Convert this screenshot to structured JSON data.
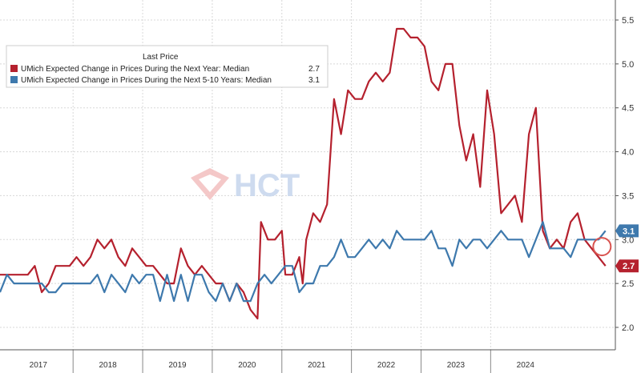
{
  "legend": {
    "title": "Last Price",
    "items": [
      {
        "label": "UMich Expected Change in Prices During the Next Year: Median",
        "value": "2.7",
        "color": "#b5212e"
      },
      {
        "label": "UMich Expected Change in Prices During the Next 5-10 Years: Median",
        "value": "3.1",
        "color": "#3e79ad"
      }
    ]
  },
  "watermark": {
    "text": "HCT"
  },
  "chart_data": {
    "type": "line",
    "x_unit": "year (decimal)",
    "xlim": [
      2016.75,
      2025.25
    ],
    "ylim": [
      1.85,
      5.6
    ],
    "yticks": [
      2.0,
      2.5,
      3.0,
      3.5,
      4.0,
      4.5,
      5.0,
      5.5
    ],
    "ytick_labels": [
      "2.0",
      "2.5",
      "3.0",
      "3.5",
      "4.0",
      "4.5",
      "5.0",
      "5.5"
    ],
    "xticks": [
      {
        "label": "2017",
        "center": 2017.3
      },
      {
        "label": "2018",
        "center": 2018.3
      },
      {
        "label": "2019",
        "center": 2019.3
      },
      {
        "label": "2020",
        "center": 2020.3
      },
      {
        "label": "2021",
        "center": 2021.3
      },
      {
        "label": "2022",
        "center": 2022.3
      },
      {
        "label": "2023",
        "center": 2023.3
      },
      {
        "label": "2024",
        "center": 2024.3
      }
    ],
    "year_dividers": [
      2017.8,
      2018.8,
      2019.8,
      2020.8,
      2021.8,
      2022.8,
      2023.8
    ],
    "grid": true,
    "axis_position": "right",
    "series": [
      {
        "name": "UMich Expected Change in Prices During the Next Year: Median",
        "color": "#b5212e",
        "last_value": "2.7",
        "points": [
          [
            2016.75,
            2.6
          ],
          [
            2016.85,
            2.6
          ],
          [
            2016.95,
            2.6
          ],
          [
            2017.05,
            2.6
          ],
          [
            2017.15,
            2.6
          ],
          [
            2017.25,
            2.7
          ],
          [
            2017.35,
            2.4
          ],
          [
            2017.45,
            2.5
          ],
          [
            2017.55,
            2.7
          ],
          [
            2017.65,
            2.7
          ],
          [
            2017.75,
            2.7
          ],
          [
            2017.85,
            2.8
          ],
          [
            2017.95,
            2.7
          ],
          [
            2018.05,
            2.8
          ],
          [
            2018.15,
            3.0
          ],
          [
            2018.25,
            2.9
          ],
          [
            2018.35,
            3.0
          ],
          [
            2018.45,
            2.8
          ],
          [
            2018.55,
            2.7
          ],
          [
            2018.65,
            2.9
          ],
          [
            2018.75,
            2.8
          ],
          [
            2018.85,
            2.7
          ],
          [
            2018.95,
            2.7
          ],
          [
            2019.05,
            2.6
          ],
          [
            2019.15,
            2.5
          ],
          [
            2019.25,
            2.5
          ],
          [
            2019.35,
            2.9
          ],
          [
            2019.45,
            2.7
          ],
          [
            2019.55,
            2.6
          ],
          [
            2019.65,
            2.7
          ],
          [
            2019.75,
            2.6
          ],
          [
            2019.85,
            2.5
          ],
          [
            2019.95,
            2.5
          ],
          [
            2020.05,
            2.3
          ],
          [
            2020.15,
            2.5
          ],
          [
            2020.25,
            2.4
          ],
          [
            2020.35,
            2.2
          ],
          [
            2020.45,
            2.1
          ],
          [
            2020.5,
            3.2
          ],
          [
            2020.6,
            3.0
          ],
          [
            2020.7,
            3.0
          ],
          [
            2020.8,
            3.1
          ],
          [
            2020.85,
            2.6
          ],
          [
            2020.95,
            2.6
          ],
          [
            2021.05,
            2.8
          ],
          [
            2021.1,
            2.5
          ],
          [
            2021.15,
            3.0
          ],
          [
            2021.25,
            3.3
          ],
          [
            2021.35,
            3.2
          ],
          [
            2021.45,
            3.4
          ],
          [
            2021.55,
            4.6
          ],
          [
            2021.65,
            4.2
          ],
          [
            2021.75,
            4.7
          ],
          [
            2021.85,
            4.6
          ],
          [
            2021.95,
            4.6
          ],
          [
            2022.05,
            4.8
          ],
          [
            2022.15,
            4.9
          ],
          [
            2022.25,
            4.8
          ],
          [
            2022.35,
            4.9
          ],
          [
            2022.45,
            5.4
          ],
          [
            2022.55,
            5.4
          ],
          [
            2022.65,
            5.3
          ],
          [
            2022.75,
            5.3
          ],
          [
            2022.85,
            5.2
          ],
          [
            2022.95,
            4.8
          ],
          [
            2023.05,
            4.7
          ],
          [
            2023.15,
            5.0
          ],
          [
            2023.25,
            5.0
          ],
          [
            2023.35,
            4.3
          ],
          [
            2023.45,
            3.9
          ],
          [
            2023.55,
            4.2
          ],
          [
            2023.65,
            3.6
          ],
          [
            2023.75,
            4.7
          ],
          [
            2023.85,
            4.2
          ],
          [
            2023.95,
            3.3
          ],
          [
            2024.05,
            3.4
          ],
          [
            2024.15,
            3.5
          ],
          [
            2024.25,
            3.2
          ],
          [
            2024.35,
            4.2
          ],
          [
            2024.45,
            4.5
          ],
          [
            2024.55,
            3.1
          ],
          [
            2024.65,
            2.9
          ],
          [
            2024.75,
            3.0
          ],
          [
            2024.85,
            2.9
          ],
          [
            2024.95,
            3.2
          ],
          [
            2025.05,
            3.3
          ],
          [
            2025.15,
            3.0
          ],
          [
            2025.25,
            2.9
          ],
          [
            2025.35,
            2.8
          ],
          [
            2025.45,
            2.7
          ]
        ]
      },
      {
        "name": "UMich Expected Change in Prices During the Next 5-10 Years: Median",
        "color": "#3e79ad",
        "last_value": "3.1",
        "points": [
          [
            2016.75,
            2.4
          ],
          [
            2016.85,
            2.6
          ],
          [
            2016.95,
            2.5
          ],
          [
            2017.05,
            2.5
          ],
          [
            2017.15,
            2.5
          ],
          [
            2017.25,
            2.5
          ],
          [
            2017.35,
            2.5
          ],
          [
            2017.45,
            2.4
          ],
          [
            2017.55,
            2.4
          ],
          [
            2017.65,
            2.5
          ],
          [
            2017.75,
            2.5
          ],
          [
            2017.85,
            2.5
          ],
          [
            2017.95,
            2.5
          ],
          [
            2018.05,
            2.5
          ],
          [
            2018.15,
            2.6
          ],
          [
            2018.25,
            2.4
          ],
          [
            2018.35,
            2.6
          ],
          [
            2018.45,
            2.5
          ],
          [
            2018.55,
            2.4
          ],
          [
            2018.65,
            2.6
          ],
          [
            2018.75,
            2.5
          ],
          [
            2018.85,
            2.6
          ],
          [
            2018.95,
            2.6
          ],
          [
            2019.05,
            2.3
          ],
          [
            2019.15,
            2.6
          ],
          [
            2019.25,
            2.3
          ],
          [
            2019.35,
            2.6
          ],
          [
            2019.45,
            2.3
          ],
          [
            2019.55,
            2.6
          ],
          [
            2019.65,
            2.6
          ],
          [
            2019.75,
            2.4
          ],
          [
            2019.85,
            2.3
          ],
          [
            2019.95,
            2.5
          ],
          [
            2020.05,
            2.3
          ],
          [
            2020.15,
            2.5
          ],
          [
            2020.25,
            2.3
          ],
          [
            2020.35,
            2.3
          ],
          [
            2020.45,
            2.5
          ],
          [
            2020.55,
            2.6
          ],
          [
            2020.65,
            2.5
          ],
          [
            2020.75,
            2.6
          ],
          [
            2020.85,
            2.7
          ],
          [
            2020.95,
            2.7
          ],
          [
            2021.05,
            2.4
          ],
          [
            2021.15,
            2.5
          ],
          [
            2021.25,
            2.5
          ],
          [
            2021.35,
            2.7
          ],
          [
            2021.45,
            2.7
          ],
          [
            2021.55,
            2.8
          ],
          [
            2021.65,
            3.0
          ],
          [
            2021.75,
            2.8
          ],
          [
            2021.85,
            2.8
          ],
          [
            2021.95,
            2.9
          ],
          [
            2022.05,
            3.0
          ],
          [
            2022.15,
            2.9
          ],
          [
            2022.25,
            3.0
          ],
          [
            2022.35,
            2.9
          ],
          [
            2022.45,
            3.1
          ],
          [
            2022.55,
            3.0
          ],
          [
            2022.65,
            3.0
          ],
          [
            2022.75,
            3.0
          ],
          [
            2022.85,
            3.0
          ],
          [
            2022.95,
            3.1
          ],
          [
            2023.05,
            2.9
          ],
          [
            2023.15,
            2.9
          ],
          [
            2023.25,
            2.7
          ],
          [
            2023.35,
            3.0
          ],
          [
            2023.45,
            2.9
          ],
          [
            2023.55,
            3.0
          ],
          [
            2023.65,
            3.0
          ],
          [
            2023.75,
            2.9
          ],
          [
            2023.85,
            3.0
          ],
          [
            2023.95,
            3.1
          ],
          [
            2024.05,
            3.0
          ],
          [
            2024.15,
            3.0
          ],
          [
            2024.25,
            3.0
          ],
          [
            2024.35,
            2.8
          ],
          [
            2024.45,
            3.0
          ],
          [
            2024.55,
            3.2
          ],
          [
            2024.65,
            2.9
          ],
          [
            2024.75,
            2.9
          ],
          [
            2024.85,
            2.9
          ],
          [
            2024.95,
            2.8
          ],
          [
            2025.05,
            3.0
          ],
          [
            2025.15,
            3.0
          ],
          [
            2025.25,
            3.0
          ],
          [
            2025.35,
            3.0
          ],
          [
            2025.45,
            3.1
          ]
        ]
      }
    ],
    "annotation": {
      "shape": "circle",
      "color": "#d9534f",
      "x": 2025.4,
      "y": 2.92
    }
  }
}
